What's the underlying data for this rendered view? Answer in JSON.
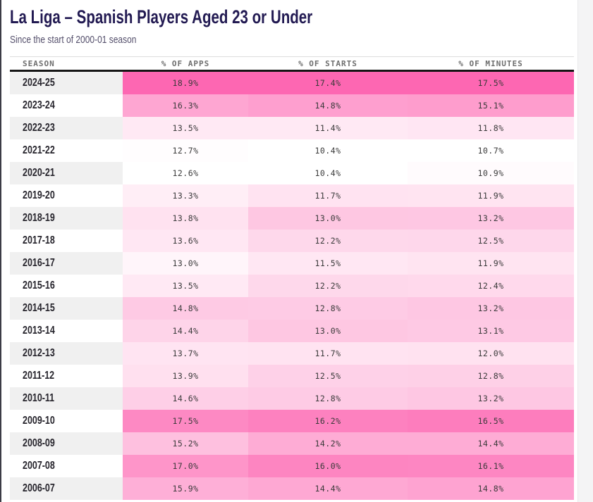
{
  "header": {
    "title": "La Liga – Spanish Players Aged 23 or Under",
    "subtitle": "Since the start of 2000-01 season"
  },
  "chart_data": {
    "type": "table",
    "subtype": "heatmap-table",
    "columns": [
      "SEASON",
      "% OF APPS",
      "% OF STARTS",
      "% OF MINUTES"
    ],
    "value_format": "one-decimal-percent",
    "normalization": "per-column min→max",
    "rows": [
      {
        "season": "2024-25",
        "apps": 18.9,
        "starts": 17.4,
        "minutes": 17.5
      },
      {
        "season": "2023-24",
        "apps": 16.3,
        "starts": 14.8,
        "minutes": 15.1
      },
      {
        "season": "2022-23",
        "apps": 13.5,
        "starts": 11.4,
        "minutes": 11.8
      },
      {
        "season": "2021-22",
        "apps": 12.7,
        "starts": 10.4,
        "minutes": 10.7
      },
      {
        "season": "2020-21",
        "apps": 12.6,
        "starts": 10.4,
        "minutes": 10.9
      },
      {
        "season": "2019-20",
        "apps": 13.3,
        "starts": 11.7,
        "minutes": 11.9
      },
      {
        "season": "2018-19",
        "apps": 13.8,
        "starts": 13.0,
        "minutes": 13.2
      },
      {
        "season": "2017-18",
        "apps": 13.6,
        "starts": 12.2,
        "minutes": 12.5
      },
      {
        "season": "2016-17",
        "apps": 13.0,
        "starts": 11.5,
        "minutes": 11.9
      },
      {
        "season": "2015-16",
        "apps": 13.5,
        "starts": 12.2,
        "minutes": 12.4
      },
      {
        "season": "2014-15",
        "apps": 14.8,
        "starts": 12.8,
        "minutes": 13.2
      },
      {
        "season": "2013-14",
        "apps": 14.4,
        "starts": 13.0,
        "minutes": 13.1
      },
      {
        "season": "2012-13",
        "apps": 13.7,
        "starts": 11.7,
        "minutes": 12.0
      },
      {
        "season": "2011-12",
        "apps": 13.9,
        "starts": 12.5,
        "minutes": 12.8
      },
      {
        "season": "2010-11",
        "apps": 14.6,
        "starts": 12.8,
        "minutes": 13.2
      },
      {
        "season": "2009-10",
        "apps": 17.5,
        "starts": 16.2,
        "minutes": 16.5
      },
      {
        "season": "2008-09",
        "apps": 15.2,
        "starts": 14.2,
        "minutes": 14.4
      },
      {
        "season": "2007-08",
        "apps": 17.0,
        "starts": 16.0,
        "minutes": 16.1
      },
      {
        "season": "2006-07",
        "apps": 15.9,
        "starts": 14.4,
        "minutes": 14.8
      }
    ]
  },
  "colors": {
    "heat_min": "#ffffff",
    "heat_max": "#fd67b2",
    "title": "#221a52",
    "subtitle": "#55506c",
    "header_text": "#6e6e6e",
    "header_rule": "#151515",
    "season_alt_bg": "#f0f0f0",
    "cell_text": "#3a3a3a"
  }
}
